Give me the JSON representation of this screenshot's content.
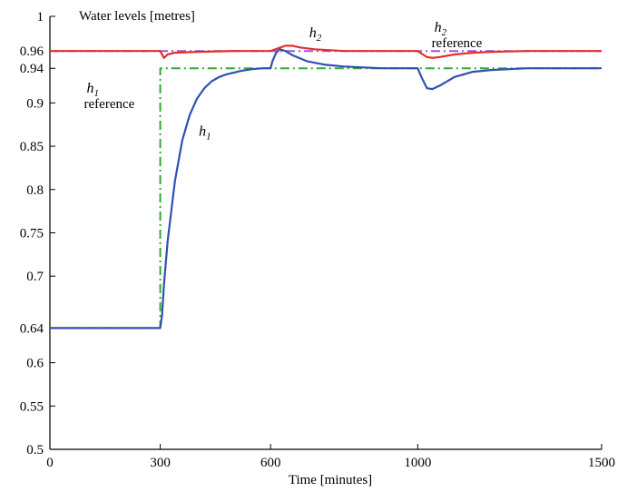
{
  "chart_data": {
    "type": "line",
    "title": "Water levels [metres]",
    "xlabel": "Time [minutes]",
    "ylabel": "",
    "xlim": [
      0,
      1500
    ],
    "ylim": [
      0.5,
      1.0
    ],
    "x_ticks": [
      0,
      300,
      600,
      1000,
      1500
    ],
    "y_ticks": [
      0.5,
      0.55,
      0.6,
      0.64,
      0.7,
      0.75,
      0.8,
      0.85,
      0.9,
      0.94,
      0.96,
      1
    ],
    "grid": false,
    "colors": {
      "h1": "#3050b0",
      "h2": "#e03028",
      "h1_reference": "#33aa33",
      "h2_reference": "#a050e0"
    },
    "series": [
      {
        "key": "h1_reference",
        "style": "dash-dot",
        "x": [
          0,
          300,
          300,
          1500
        ],
        "y": [
          0.64,
          0.64,
          0.94,
          0.94
        ]
      },
      {
        "key": "h2_reference",
        "style": "dash-dot",
        "x": [
          0,
          1500
        ],
        "y": [
          0.96,
          0.96
        ]
      },
      {
        "key": "h1",
        "style": "solid",
        "x": [
          0,
          300,
          305,
          310,
          320,
          340,
          360,
          380,
          400,
          420,
          440,
          460,
          480,
          500,
          520,
          550,
          580,
          600,
          605,
          615,
          625,
          640,
          660,
          700,
          750,
          800,
          900,
          1000,
          1010,
          1025,
          1040,
          1060,
          1100,
          1150,
          1200,
          1300,
          1400,
          1500
        ],
        "y": [
          0.64,
          0.64,
          0.655,
          0.69,
          0.74,
          0.81,
          0.857,
          0.886,
          0.905,
          0.917,
          0.925,
          0.93,
          0.933,
          0.935,
          0.937,
          0.939,
          0.94,
          0.94,
          0.948,
          0.958,
          0.962,
          0.96,
          0.955,
          0.948,
          0.944,
          0.942,
          0.94,
          0.94,
          0.93,
          0.917,
          0.916,
          0.92,
          0.93,
          0.936,
          0.938,
          0.94,
          0.94,
          0.94
        ]
      },
      {
        "key": "h2",
        "style": "solid",
        "x": [
          0,
          300,
          305,
          310,
          320,
          340,
          400,
          500,
          600,
          620,
          640,
          660,
          680,
          720,
          800,
          900,
          1000,
          1010,
          1025,
          1040,
          1060,
          1100,
          1150,
          1200,
          1300,
          1500
        ],
        "y": [
          0.96,
          0.96,
          0.956,
          0.952,
          0.956,
          0.958,
          0.959,
          0.96,
          0.96,
          0.963,
          0.966,
          0.966,
          0.964,
          0.962,
          0.96,
          0.96,
          0.96,
          0.957,
          0.953,
          0.952,
          0.953,
          0.956,
          0.958,
          0.959,
          0.96,
          0.96
        ]
      }
    ],
    "annotations": [
      {
        "key": "h1_reference",
        "base": "h",
        "sub": "1",
        "text": "reference",
        "x": 100,
        "y": 0.912
      },
      {
        "key": "h1",
        "base": "h",
        "sub": "1",
        "text": "",
        "x": 405,
        "y": 0.862
      },
      {
        "key": "h2",
        "base": "h",
        "sub": "2",
        "text": "",
        "x": 705,
        "y": 0.976
      },
      {
        "key": "h2_reference",
        "base": "h",
        "sub": "2",
        "text": "reference",
        "x": 1045,
        "y": 0.982
      }
    ]
  }
}
